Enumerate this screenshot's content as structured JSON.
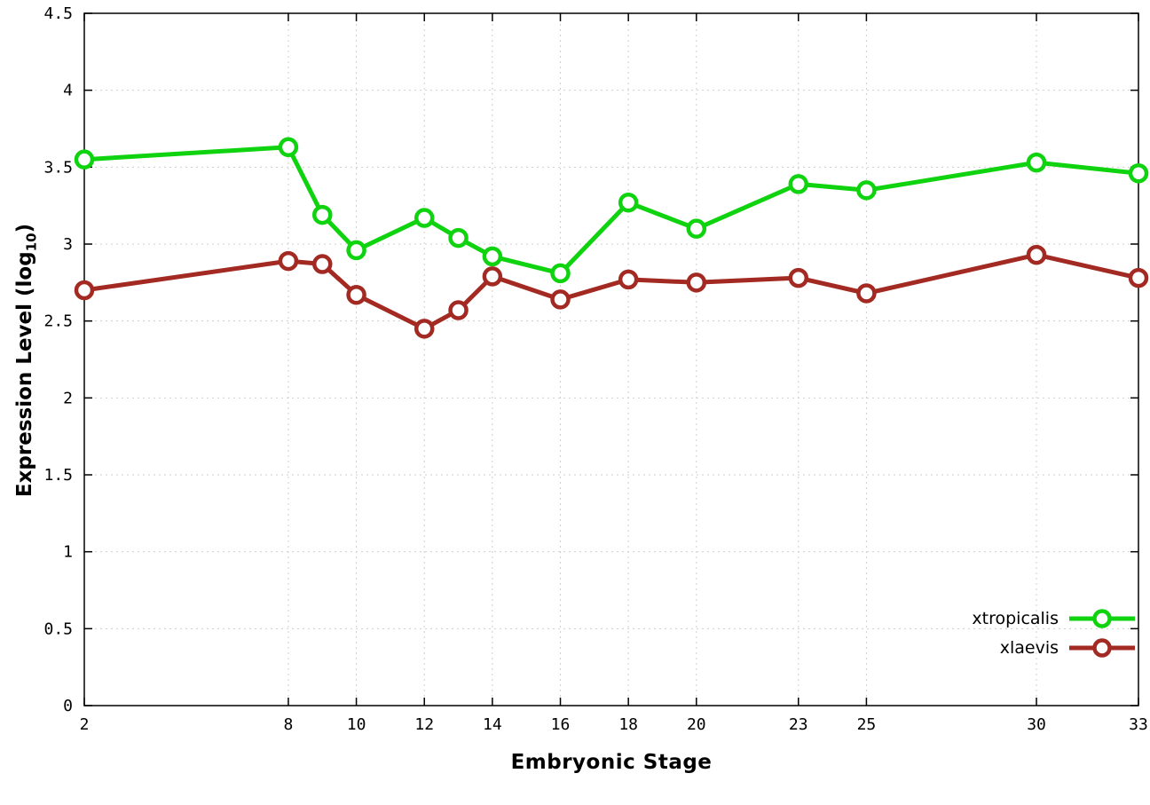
{
  "chart_data": {
    "type": "line",
    "title": "",
    "xlabel": "Embryonic Stage",
    "ylabel": {
      "pre": "Expression Level (log",
      "sub": "10",
      "post": ")"
    },
    "xlim": [
      2,
      33
    ],
    "ylim": [
      0,
      4.5
    ],
    "x_ticks": [
      2,
      8,
      10,
      12,
      14,
      16,
      18,
      20,
      23,
      25,
      30,
      33
    ],
    "y_ticks": [
      0,
      0.5,
      1,
      1.5,
      2,
      2.5,
      3,
      3.5,
      4,
      4.5
    ],
    "y_tick_labels": [
      "0",
      "0.5",
      "1",
      "1.5",
      "2",
      "2.5",
      "3",
      "3.5",
      "4",
      "4.5"
    ],
    "grid": true,
    "legend_position": "bottom-right",
    "x": [
      2,
      8,
      9,
      10,
      12,
      13,
      14,
      16,
      18,
      20,
      23,
      25,
      30,
      33
    ],
    "series": [
      {
        "name": "xtropicalis",
        "color": "#0fd30f",
        "marker": "open-circle",
        "values": [
          3.55,
          3.63,
          3.19,
          2.96,
          3.17,
          3.04,
          2.92,
          2.81,
          3.27,
          3.1,
          3.39,
          3.35,
          3.53,
          3.46
        ]
      },
      {
        "name": "xlaevis",
        "color": "#a32a22",
        "marker": "open-circle",
        "values": [
          2.7,
          2.89,
          2.87,
          2.67,
          2.45,
          2.57,
          2.79,
          2.64,
          2.77,
          2.75,
          2.78,
          2.68,
          2.93,
          2.78
        ]
      }
    ]
  }
}
